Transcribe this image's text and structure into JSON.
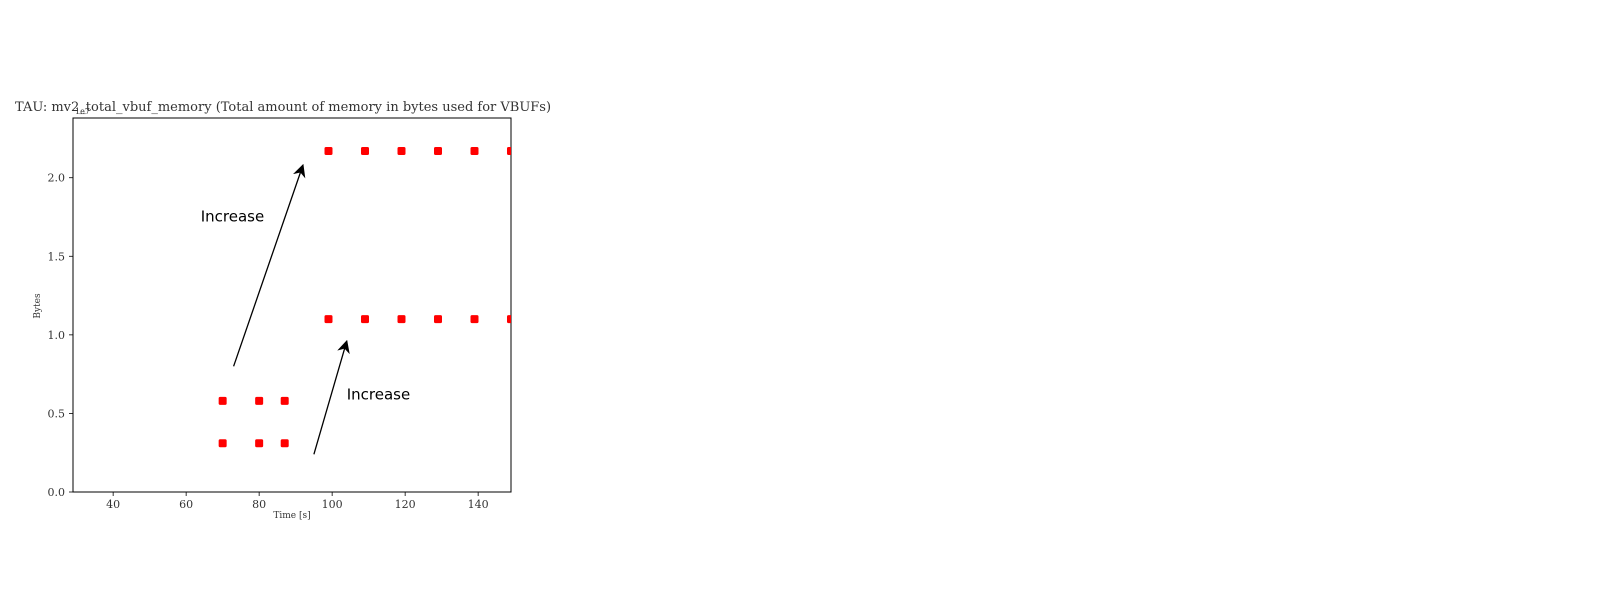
{
  "chart_data": {
    "type": "scatter",
    "title": "TAU: mv2_total_vbuf_memory (Total amount of memory in bytes used for VBUFs)",
    "xlabel": "Time [s]",
    "ylabel": "Bytes",
    "y_offset_label": "1e7",
    "xlim": [
      29,
      149
    ],
    "ylim": [
      0,
      2.38
    ],
    "xticks": [
      40,
      60,
      80,
      100,
      120,
      140
    ],
    "yticks": [
      0.0,
      0.5,
      1.0,
      1.5,
      2.0
    ],
    "xtick_labels": [
      "40",
      "60",
      "80",
      "100",
      "120",
      "140"
    ],
    "ytick_labels": [
      "0.0",
      "0.5",
      "1.0",
      "1.5",
      "2.0"
    ],
    "grid": false,
    "marker_color": "#ff0000",
    "series": [
      {
        "x": [
          70,
          80,
          87,
          70,
          80,
          87,
          99,
          109,
          119,
          129,
          139,
          149,
          99,
          109,
          119,
          129,
          139,
          149
        ],
        "y": [
          0.31,
          0.31,
          0.31,
          0.58,
          0.58,
          0.58,
          1.1,
          1.1,
          1.1,
          1.1,
          1.1,
          1.1,
          2.17,
          2.17,
          2.17,
          2.17,
          2.17,
          2.17
        ]
      }
    ],
    "annotations": [
      {
        "text": "Increase",
        "text_x": 64,
        "text_y": 1.72,
        "arrow_from": [
          73,
          0.8
        ],
        "arrow_to": [
          92,
          2.08
        ]
      },
      {
        "text": "Increase",
        "text_x": 104,
        "text_y": 0.59,
        "arrow_from": [
          95,
          0.24
        ],
        "arrow_to": [
          104,
          0.96
        ]
      }
    ]
  }
}
